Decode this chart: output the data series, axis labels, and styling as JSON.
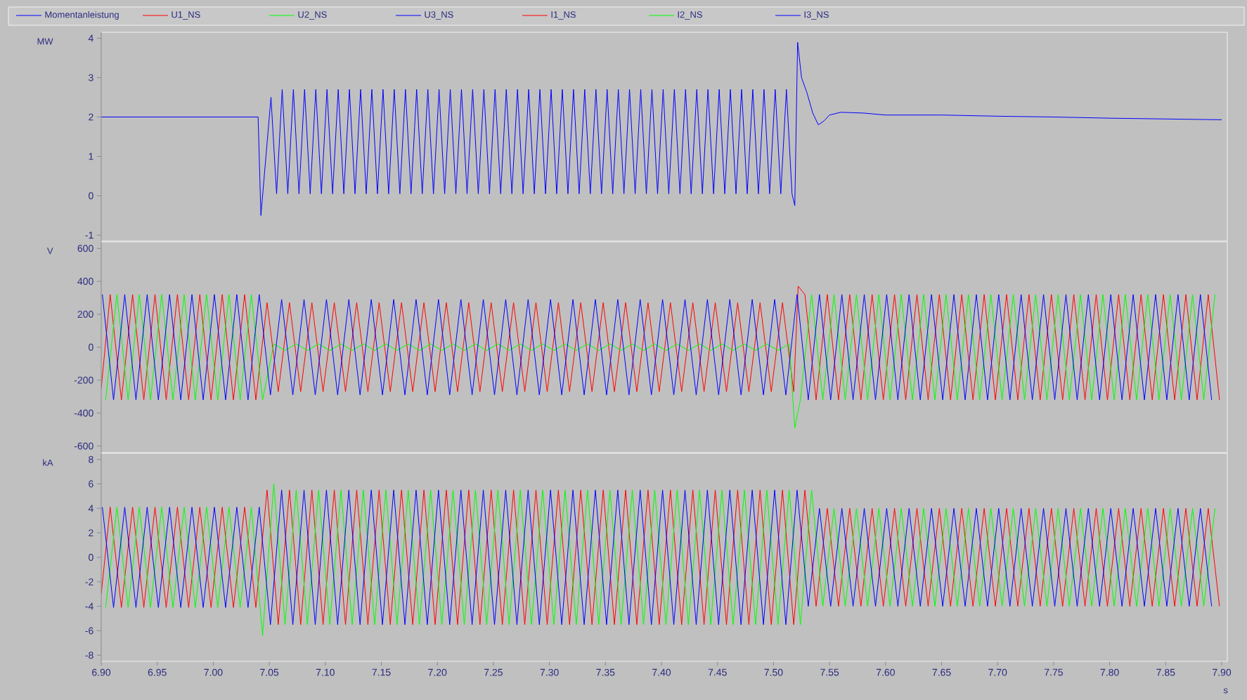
{
  "chart_data": [
    {
      "type": "line",
      "ylabel": "MW",
      "legend": "top",
      "tick_labels": "y",
      "line_style": "solid",
      "marker": "none",
      "xlim": [
        6.9,
        7.905
      ],
      "ylim": [
        -1.15,
        4.15
      ],
      "yticks": [
        -1,
        0,
        1,
        2,
        3,
        4
      ],
      "series": [
        {
          "name": "Momentanleistung",
          "color": "#0000ff",
          "x": [
            6.9,
            6.95,
            7.0,
            7.04,
            7.0425,
            7.0515,
            7.0565,
            7.0615,
            7.0665,
            7.0715,
            7.0765,
            7.0815,
            7.0865,
            7.0915,
            7.0965,
            7.1015,
            7.1065,
            7.1115,
            7.1165,
            7.1215,
            7.1265,
            7.1315,
            7.1365,
            7.1415,
            7.1465,
            7.1515,
            7.1565,
            7.1615,
            7.1665,
            7.1715,
            7.1765,
            7.1815,
            7.1865,
            7.1915,
            7.1965,
            7.2015,
            7.2065,
            7.2115,
            7.2165,
            7.2215,
            7.2265,
            7.2315,
            7.2365,
            7.2415,
            7.2465,
            7.2515,
            7.2565,
            7.2615,
            7.2665,
            7.2715,
            7.2765,
            7.2815,
            7.2865,
            7.2915,
            7.2965,
            7.3015,
            7.3065,
            7.3115,
            7.3165,
            7.3215,
            7.3265,
            7.3315,
            7.3365,
            7.3415,
            7.3465,
            7.3515,
            7.3565,
            7.3615,
            7.3665,
            7.3715,
            7.3765,
            7.3815,
            7.3865,
            7.3915,
            7.3965,
            7.4015,
            7.4065,
            7.4115,
            7.4165,
            7.4215,
            7.4265,
            7.4315,
            7.4365,
            7.4415,
            7.4465,
            7.4515,
            7.4565,
            7.4615,
            7.4665,
            7.4715,
            7.4765,
            7.4815,
            7.4865,
            7.4915,
            7.4965,
            7.5015,
            7.5065,
            7.5115,
            7.5165,
            7.519,
            7.5215,
            7.525,
            7.53,
            7.535,
            7.54,
            7.545,
            7.55,
            7.56,
            7.58,
            7.6,
            7.65,
            7.7,
            7.75,
            7.8,
            7.85,
            7.9
          ],
          "values": [
            2.0,
            2.0,
            2.0,
            2.0,
            -0.5,
            2.5,
            0.05,
            2.7,
            0.05,
            2.7,
            0.05,
            2.7,
            0.05,
            2.7,
            0.05,
            2.7,
            0.05,
            2.7,
            0.05,
            2.7,
            0.05,
            2.7,
            0.05,
            2.7,
            0.05,
            2.7,
            0.05,
            2.7,
            0.05,
            2.7,
            0.05,
            2.7,
            0.05,
            2.7,
            0.05,
            2.7,
            0.05,
            2.7,
            0.05,
            2.7,
            0.05,
            2.7,
            0.05,
            2.7,
            0.05,
            2.7,
            0.05,
            2.7,
            0.05,
            2.7,
            0.05,
            2.7,
            0.05,
            2.7,
            0.05,
            2.7,
            0.05,
            2.7,
            0.05,
            2.7,
            0.05,
            2.7,
            0.05,
            2.7,
            0.05,
            2.7,
            0.05,
            2.7,
            0.05,
            2.7,
            0.05,
            2.7,
            0.05,
            2.7,
            0.05,
            2.7,
            0.05,
            2.7,
            0.05,
            2.7,
            0.05,
            2.7,
            0.05,
            2.7,
            0.05,
            2.7,
            0.05,
            2.7,
            0.05,
            2.7,
            0.05,
            2.7,
            0.05,
            2.7,
            0.05,
            2.7,
            0.05,
            2.7,
            0.05,
            -0.25,
            3.9,
            3.0,
            2.6,
            2.1,
            1.8,
            1.9,
            2.05,
            2.12,
            2.1,
            2.05,
            2.05,
            2.02,
            2.0,
            1.97,
            1.95,
            1.93
          ]
        }
      ]
    },
    {
      "type": "line",
      "ylabel": "V",
      "legend": "top",
      "tick_labels": "y",
      "line_style": "solid",
      "marker": "none",
      "xlim": [
        6.9,
        7.905
      ],
      "ylim": [
        -640,
        640
      ],
      "yticks": [
        -600,
        -400,
        -200,
        0,
        200,
        400,
        600
      ],
      "series": [
        {
          "name": "U1_NS",
          "color": "#ff0000",
          "x": [
            6.9,
            6.908,
            6.918,
            6.928,
            6.938,
            6.948,
            6.958,
            6.968,
            6.978,
            6.988,
            6.998,
            7.008,
            7.018,
            7.028,
            7.038,
            7.048,
            7.058,
            7.068,
            7.078,
            7.088,
            7.098,
            7.108,
            7.118,
            7.128,
            7.138,
            7.148,
            7.158,
            7.168,
            7.178,
            7.188,
            7.198,
            7.208,
            7.218,
            7.228,
            7.238,
            7.248,
            7.258,
            7.268,
            7.278,
            7.288,
            7.298,
            7.308,
            7.318,
            7.328,
            7.338,
            7.348,
            7.358,
            7.368,
            7.378,
            7.388,
            7.398,
            7.408,
            7.418,
            7.428,
            7.438,
            7.448,
            7.458,
            7.468,
            7.478,
            7.488,
            7.498,
            7.508,
            7.518,
            7.522,
            7.528,
            7.538,
            7.548,
            7.558,
            7.568,
            7.578,
            7.588,
            7.598,
            7.608,
            7.618,
            7.628,
            7.638,
            7.648,
            7.658,
            7.668,
            7.678,
            7.688,
            7.698,
            7.708,
            7.718,
            7.728,
            7.738,
            7.748,
            7.758,
            7.768,
            7.778,
            7.788,
            7.798,
            7.808,
            7.818,
            7.828,
            7.838,
            7.848,
            7.858,
            7.868,
            7.878,
            7.888,
            7.898
          ],
          "values": [
            -250,
            320,
            -320,
            320,
            -320,
            320,
            -320,
            320,
            -320,
            320,
            -320,
            320,
            -320,
            320,
            -320,
            270,
            -270,
            270,
            -270,
            270,
            -270,
            270,
            -270,
            270,
            -270,
            270,
            -270,
            270,
            -270,
            270,
            -270,
            270,
            -270,
            270,
            -270,
            270,
            -270,
            270,
            -270,
            270,
            -270,
            270,
            -270,
            270,
            -270,
            270,
            -270,
            270,
            -270,
            270,
            -270,
            270,
            -270,
            270,
            -270,
            270,
            -270,
            270,
            -270,
            270,
            -270,
            270,
            -270,
            370,
            320,
            -320,
            320,
            -320,
            320,
            -320,
            320,
            -320,
            320,
            -320,
            320,
            -320,
            320,
            -320,
            320,
            -320,
            320,
            -320,
            320,
            -320,
            320,
            -320,
            320,
            -320,
            320,
            -320,
            320,
            -320,
            320,
            -320,
            320,
            -320,
            320,
            -320,
            320,
            -320,
            320,
            -320
          ]
        },
        {
          "name": "U2_NS",
          "color": "#00ff00",
          "x": [
            6.904,
            6.914,
            6.924,
            6.934,
            6.944,
            6.954,
            6.964,
            6.974,
            6.984,
            6.994,
            7.004,
            7.014,
            7.024,
            7.034,
            7.044,
            7.054,
            7.064,
            7.074,
            7.084,
            7.094,
            7.104,
            7.114,
            7.124,
            7.134,
            7.144,
            7.154,
            7.164,
            7.174,
            7.184,
            7.194,
            7.204,
            7.214,
            7.224,
            7.234,
            7.244,
            7.254,
            7.264,
            7.274,
            7.284,
            7.294,
            7.304,
            7.314,
            7.324,
            7.334,
            7.344,
            7.354,
            7.364,
            7.374,
            7.384,
            7.394,
            7.404,
            7.414,
            7.424,
            7.434,
            7.444,
            7.454,
            7.464,
            7.474,
            7.484,
            7.494,
            7.504,
            7.514,
            7.519,
            7.524,
            7.534,
            7.544,
            7.554,
            7.564,
            7.574,
            7.584,
            7.594,
            7.604,
            7.614,
            7.624,
            7.634,
            7.644,
            7.654,
            7.664,
            7.674,
            7.684,
            7.694,
            7.704,
            7.714,
            7.724,
            7.734,
            7.744,
            7.754,
            7.764,
            7.774,
            7.784,
            7.794,
            7.804,
            7.814,
            7.824,
            7.834,
            7.844,
            7.854,
            7.864,
            7.874,
            7.884,
            7.894
          ],
          "values": [
            -320,
            320,
            -320,
            320,
            -320,
            320,
            -320,
            320,
            -320,
            320,
            -320,
            320,
            -320,
            320,
            -320,
            20,
            -20,
            20,
            -20,
            20,
            -20,
            20,
            -20,
            20,
            -20,
            20,
            -20,
            20,
            -20,
            20,
            -20,
            20,
            -20,
            20,
            -20,
            20,
            -20,
            20,
            -20,
            20,
            -20,
            20,
            -20,
            20,
            -20,
            20,
            -20,
            20,
            -20,
            20,
            -20,
            20,
            -20,
            20,
            -20,
            20,
            -20,
            20,
            -20,
            20,
            -20,
            20,
            -490,
            -320,
            320,
            -320,
            320,
            -320,
            320,
            -320,
            320,
            -320,
            320,
            -320,
            320,
            -320,
            320,
            -320,
            320,
            -320,
            320,
            -320,
            320,
            -320,
            320,
            -320,
            320,
            -320,
            320,
            -320,
            320,
            -320,
            320,
            -320,
            320,
            -320,
            320,
            -320,
            320,
            -320,
            320
          ]
        },
        {
          "name": "U3_NS",
          "color": "#0000ff",
          "x": [
            6.901,
            6.911,
            6.921,
            6.931,
            6.941,
            6.951,
            6.961,
            6.971,
            6.981,
            6.991,
            7.001,
            7.011,
            7.021,
            7.031,
            7.041,
            7.051,
            7.061,
            7.071,
            7.081,
            7.091,
            7.101,
            7.111,
            7.121,
            7.131,
            7.141,
            7.151,
            7.161,
            7.171,
            7.181,
            7.191,
            7.201,
            7.211,
            7.221,
            7.231,
            7.241,
            7.251,
            7.261,
            7.271,
            7.281,
            7.291,
            7.301,
            7.311,
            7.321,
            7.331,
            7.341,
            7.351,
            7.361,
            7.371,
            7.381,
            7.391,
            7.401,
            7.411,
            7.421,
            7.431,
            7.441,
            7.451,
            7.461,
            7.471,
            7.481,
            7.491,
            7.501,
            7.511,
            7.521,
            7.531,
            7.541,
            7.551,
            7.561,
            7.571,
            7.581,
            7.591,
            7.601,
            7.611,
            7.621,
            7.631,
            7.641,
            7.651,
            7.661,
            7.671,
            7.681,
            7.691,
            7.701,
            7.711,
            7.721,
            7.731,
            7.741,
            7.751,
            7.761,
            7.771,
            7.781,
            7.791,
            7.801,
            7.811,
            7.821,
            7.831,
            7.841,
            7.851,
            7.861,
            7.871,
            7.881,
            7.891
          ],
          "values": [
            320,
            -320,
            320,
            -320,
            320,
            -320,
            320,
            -320,
            320,
            -320,
            320,
            -320,
            320,
            -320,
            320,
            -290,
            290,
            -290,
            290,
            -290,
            290,
            -290,
            290,
            -290,
            290,
            -290,
            290,
            -290,
            290,
            -290,
            290,
            -290,
            290,
            -290,
            290,
            -290,
            290,
            -290,
            290,
            -290,
            290,
            -290,
            290,
            -290,
            290,
            -290,
            290,
            -290,
            290,
            -290,
            290,
            -290,
            290,
            -290,
            290,
            -290,
            290,
            -290,
            290,
            -290,
            290,
            -290,
            320,
            -320,
            320,
            -320,
            320,
            -320,
            320,
            -320,
            320,
            -320,
            320,
            -320,
            320,
            -320,
            320,
            -320,
            320,
            -320,
            320,
            -320,
            320,
            -320,
            320,
            -320,
            320,
            -320,
            320,
            -320,
            320,
            -320,
            320,
            -320,
            320,
            -320,
            320,
            -320,
            320,
            -320
          ]
        }
      ]
    },
    {
      "type": "line",
      "ylabel": "kA",
      "xlabel": "s",
      "legend": "top",
      "line_style": "solid",
      "marker": "none",
      "xlim": [
        6.9,
        7.905
      ],
      "ylim": [
        -8.5,
        8.5
      ],
      "yticks": [
        -8,
        -6,
        -4,
        -2,
        0,
        2,
        4,
        6,
        8
      ],
      "xticks": [
        {
          "value": 6.9,
          "label": "6.90"
        },
        {
          "value": 6.95,
          "label": "6.95"
        },
        {
          "value": 7.0,
          "label": "7.00"
        },
        {
          "value": 7.05,
          "label": "7.05"
        },
        {
          "value": 7.1,
          "label": "7.10"
        },
        {
          "value": 7.15,
          "label": "7.15"
        },
        {
          "value": 7.2,
          "label": "7.20"
        },
        {
          "value": 7.25,
          "label": "7.25"
        },
        {
          "value": 7.3,
          "label": "7.30"
        },
        {
          "value": 7.35,
          "label": "7.35"
        },
        {
          "value": 7.4,
          "label": "7.40"
        },
        {
          "value": 7.45,
          "label": "7.45"
        },
        {
          "value": 7.5,
          "label": "7.50"
        },
        {
          "value": 7.55,
          "label": "7.55"
        },
        {
          "value": 7.6,
          "label": "7.60"
        },
        {
          "value": 7.65,
          "label": "7.65"
        },
        {
          "value": 7.7,
          "label": "7.70"
        },
        {
          "value": 7.75,
          "label": "7.75"
        },
        {
          "value": 7.8,
          "label": "7.80"
        },
        {
          "value": 7.85,
          "label": "7.85"
        },
        {
          "value": 7.9,
          "label": "7.90"
        }
      ],
      "series": [
        {
          "name": "I1_NS",
          "color": "#ff0000",
          "x": [
            6.9,
            6.908,
            6.918,
            6.928,
            6.938,
            6.948,
            6.958,
            6.968,
            6.978,
            6.988,
            6.998,
            7.008,
            7.018,
            7.028,
            7.038,
            7.048,
            7.058,
            7.068,
            7.078,
            7.088,
            7.098,
            7.108,
            7.118,
            7.128,
            7.138,
            7.148,
            7.158,
            7.168,
            7.178,
            7.188,
            7.198,
            7.208,
            7.218,
            7.228,
            7.238,
            7.248,
            7.258,
            7.268,
            7.278,
            7.288,
            7.298,
            7.308,
            7.318,
            7.328,
            7.338,
            7.348,
            7.358,
            7.368,
            7.378,
            7.388,
            7.398,
            7.408,
            7.418,
            7.428,
            7.438,
            7.448,
            7.458,
            7.468,
            7.478,
            7.488,
            7.498,
            7.508,
            7.518,
            7.528,
            7.538,
            7.548,
            7.558,
            7.568,
            7.578,
            7.588,
            7.598,
            7.608,
            7.618,
            7.628,
            7.638,
            7.648,
            7.658,
            7.668,
            7.678,
            7.688,
            7.698,
            7.708,
            7.718,
            7.728,
            7.738,
            7.748,
            7.758,
            7.768,
            7.778,
            7.788,
            7.798,
            7.808,
            7.818,
            7.828,
            7.838,
            7.848,
            7.858,
            7.868,
            7.878,
            7.888,
            7.898
          ],
          "values": [
            -3,
            4.1,
            -4.1,
            4.1,
            -4.1,
            4.1,
            -4.1,
            4.1,
            -4.1,
            4.1,
            -4.1,
            4.1,
            -4.1,
            4.1,
            -4.1,
            5.5,
            -5.5,
            5.5,
            -5.5,
            5.5,
            -5.5,
            5.5,
            -5.5,
            5.5,
            -5.5,
            5.5,
            -5.5,
            5.5,
            -5.5,
            5.5,
            -5.5,
            5.5,
            -5.5,
            5.5,
            -5.5,
            5.5,
            -5.5,
            5.5,
            -5.5,
            5.5,
            -5.5,
            5.5,
            -5.5,
            5.5,
            -5.5,
            5.5,
            -5.5,
            5.5,
            -5.5,
            5.5,
            -5.5,
            5.5,
            -5.5,
            5.5,
            -5.5,
            5.5,
            -5.5,
            5.5,
            -5.5,
            5.5,
            -5.5,
            5.5,
            -5.5,
            5.5,
            -4,
            4,
            -4,
            4,
            -4,
            4,
            -4,
            4,
            -4,
            4,
            -4,
            4,
            -4,
            4,
            -4,
            4,
            -4,
            4,
            -4,
            4,
            -4,
            4,
            -4,
            4,
            -4,
            4,
            -4,
            4,
            -4,
            4,
            -4,
            4,
            -4,
            4,
            -4,
            4,
            -4
          ]
        },
        {
          "name": "I2_NS",
          "color": "#00ff00",
          "x": [
            6.904,
            6.914,
            6.924,
            6.934,
            6.944,
            6.954,
            6.964,
            6.974,
            6.984,
            6.994,
            7.004,
            7.014,
            7.024,
            7.034,
            7.044,
            7.054,
            7.064,
            7.074,
            7.084,
            7.094,
            7.104,
            7.114,
            7.124,
            7.134,
            7.144,
            7.154,
            7.164,
            7.174,
            7.184,
            7.194,
            7.204,
            7.214,
            7.224,
            7.234,
            7.244,
            7.254,
            7.264,
            7.274,
            7.284,
            7.294,
            7.304,
            7.314,
            7.324,
            7.334,
            7.344,
            7.354,
            7.364,
            7.374,
            7.384,
            7.394,
            7.404,
            7.414,
            7.424,
            7.434,
            7.444,
            7.454,
            7.464,
            7.474,
            7.484,
            7.494,
            7.504,
            7.514,
            7.524,
            7.534,
            7.544,
            7.554,
            7.564,
            7.574,
            7.584,
            7.594,
            7.604,
            7.614,
            7.624,
            7.634,
            7.644,
            7.654,
            7.664,
            7.674,
            7.684,
            7.694,
            7.704,
            7.714,
            7.724,
            7.734,
            7.744,
            7.754,
            7.764,
            7.774,
            7.784,
            7.794,
            7.804,
            7.814,
            7.824,
            7.834,
            7.844,
            7.854,
            7.864,
            7.874,
            7.884,
            7.894
          ],
          "values": [
            -4.1,
            4.1,
            -4.1,
            4.1,
            -4.1,
            4.1,
            -4.1,
            4.1,
            -4.1,
            4.1,
            -4.1,
            4.1,
            -4.1,
            4.1,
            -6.4,
            6.0,
            -5.5,
            5.5,
            -5.5,
            5.5,
            -5.5,
            5.5,
            -5.5,
            5.5,
            -5.5,
            5.5,
            -5.5,
            5.5,
            -5.5,
            5.5,
            -5.5,
            5.5,
            -5.5,
            5.5,
            -5.5,
            5.5,
            -5.5,
            5.5,
            -5.5,
            5.5,
            -5.5,
            5.5,
            -5.5,
            5.5,
            -5.5,
            5.5,
            -5.5,
            5.5,
            -5.5,
            5.5,
            -5.5,
            5.5,
            -5.5,
            5.5,
            -5.5,
            5.5,
            -5.5,
            5.5,
            -5.5,
            5.5,
            -5.5,
            5.5,
            -5.5,
            5.5,
            -4,
            4,
            -4,
            4,
            -4,
            4,
            -4,
            4,
            -4,
            4,
            -4,
            4,
            -4,
            4,
            -4,
            4,
            -4,
            4,
            -4,
            4,
            -4,
            4,
            -4,
            4,
            -4,
            4,
            -4,
            4,
            -4,
            4,
            -4,
            4,
            -4,
            4,
            -4,
            4
          ]
        },
        {
          "name": "I3_NS",
          "color": "#0000ff",
          "x": [
            6.901,
            6.911,
            6.921,
            6.931,
            6.941,
            6.951,
            6.961,
            6.971,
            6.981,
            6.991,
            7.001,
            7.011,
            7.021,
            7.031,
            7.041,
            7.051,
            7.061,
            7.071,
            7.081,
            7.091,
            7.101,
            7.111,
            7.121,
            7.131,
            7.141,
            7.151,
            7.161,
            7.171,
            7.181,
            7.191,
            7.201,
            7.211,
            7.221,
            7.231,
            7.241,
            7.251,
            7.261,
            7.271,
            7.281,
            7.291,
            7.301,
            7.311,
            7.321,
            7.331,
            7.341,
            7.351,
            7.361,
            7.371,
            7.381,
            7.391,
            7.401,
            7.411,
            7.421,
            7.431,
            7.441,
            7.451,
            7.461,
            7.471,
            7.481,
            7.491,
            7.501,
            7.511,
            7.521,
            7.531,
            7.541,
            7.551,
            7.561,
            7.571,
            7.581,
            7.591,
            7.601,
            7.611,
            7.621,
            7.631,
            7.641,
            7.651,
            7.661,
            7.671,
            7.681,
            7.691,
            7.701,
            7.711,
            7.721,
            7.731,
            7.741,
            7.751,
            7.761,
            7.771,
            7.781,
            7.791,
            7.801,
            7.811,
            7.821,
            7.831,
            7.841,
            7.851,
            7.861,
            7.871,
            7.881,
            7.891
          ],
          "values": [
            4.1,
            -4.1,
            4.1,
            -4.1,
            4.1,
            -4.1,
            4.1,
            -4.1,
            4.1,
            -4.1,
            4.1,
            -4.1,
            4.1,
            -4.1,
            4.1,
            -5.5,
            5.5,
            -5.5,
            5.5,
            -5.5,
            5.5,
            -5.5,
            5.5,
            -5.5,
            5.5,
            -5.5,
            5.5,
            -5.5,
            5.5,
            -5.5,
            5.5,
            -5.5,
            5.5,
            -5.5,
            5.5,
            -5.5,
            5.5,
            -5.5,
            5.5,
            -5.5,
            5.5,
            -5.5,
            5.5,
            -5.5,
            5.5,
            -5.5,
            5.5,
            -5.5,
            5.5,
            -5.5,
            5.5,
            -5.5,
            5.5,
            -5.5,
            5.5,
            -5.5,
            5.5,
            -5.5,
            5.5,
            -5.5,
            5.5,
            -5.5,
            5.5,
            -4,
            4,
            -4,
            4,
            -4,
            4,
            -4,
            4,
            -4,
            4,
            -4,
            4,
            -4,
            4,
            -4,
            4,
            -4,
            4,
            -4,
            4,
            -4,
            4,
            -4,
            4,
            -4,
            4,
            -4,
            4,
            -4,
            4,
            -4,
            4,
            -4,
            4,
            -4,
            4,
            -4
          ]
        }
      ]
    }
  ]
}
